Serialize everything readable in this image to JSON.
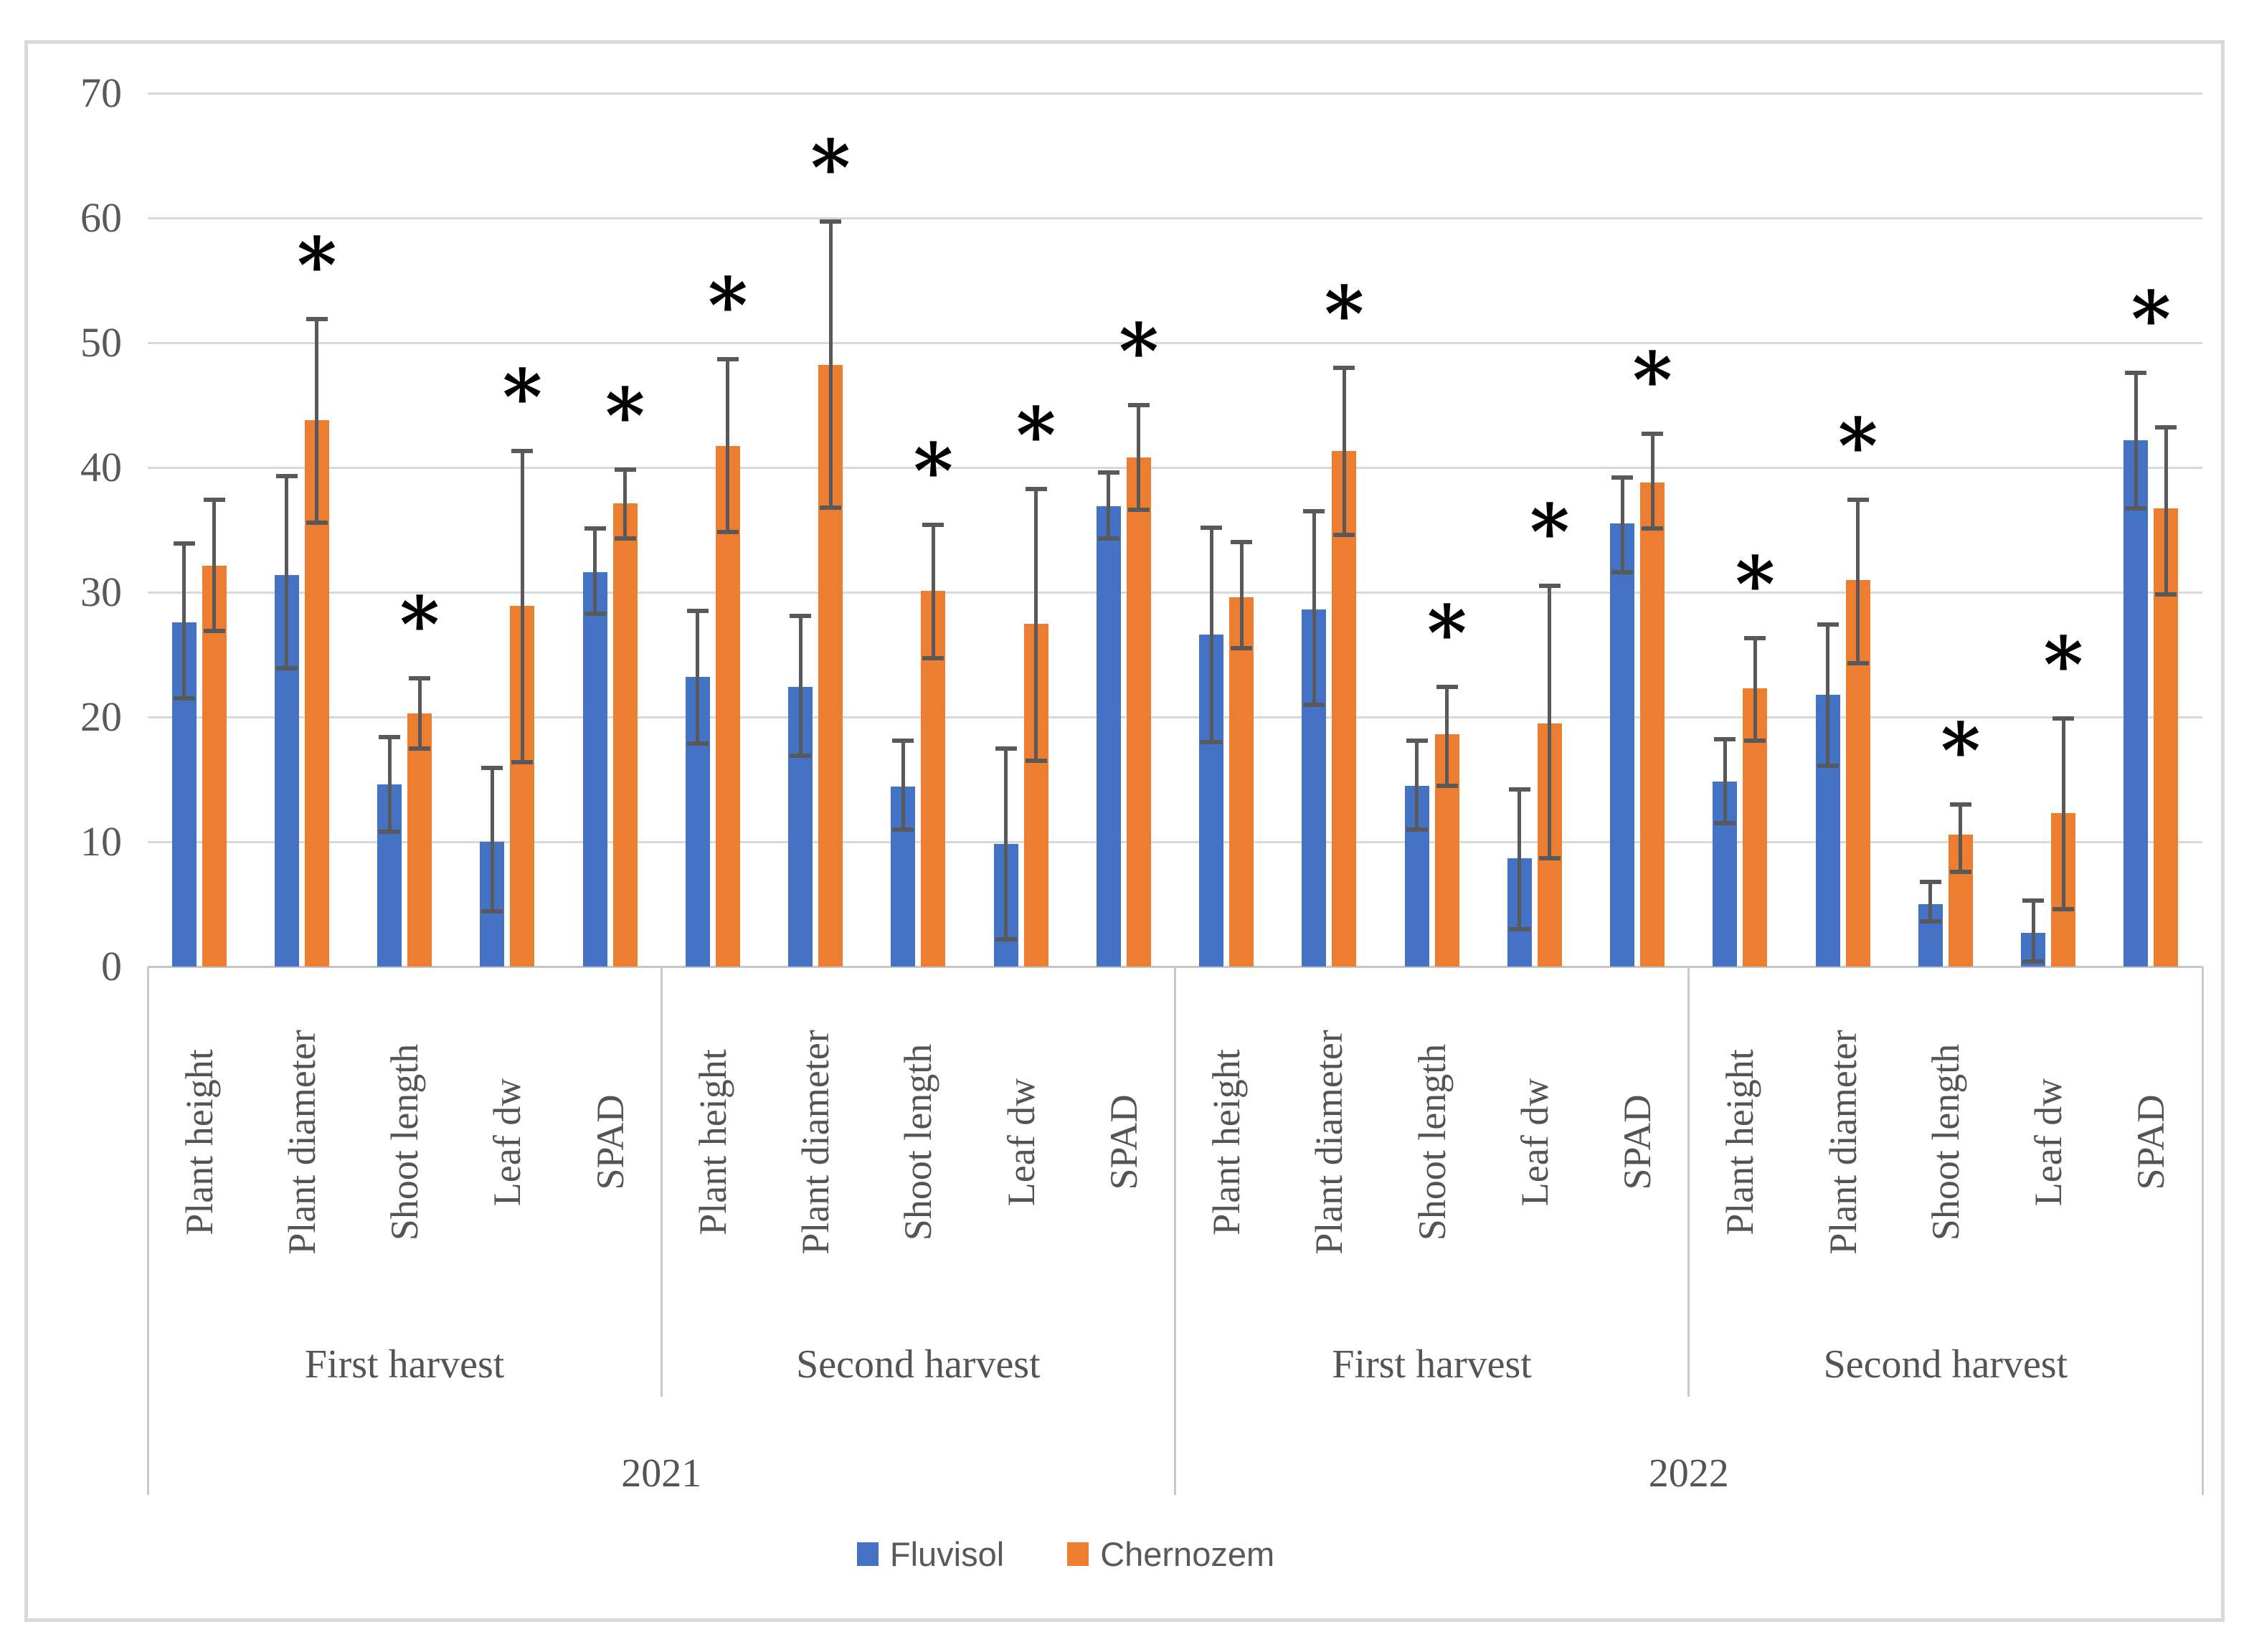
{
  "figure": {
    "background_color": "#ffffff",
    "border_color": "#d9d9d9"
  },
  "axis": {
    "y_tick_labels": [
      "0",
      "10",
      "20",
      "30",
      "40",
      "50",
      "60",
      "70"
    ],
    "y_min": 0,
    "y_max": 70,
    "y_step": 10,
    "grid_color": "#d9d9d9",
    "axis_line_color": "#c6c6c6",
    "tick_text_color": "#595959"
  },
  "legend": {
    "position": "bottom-center",
    "items": [
      {
        "label": "Fluvisol",
        "color": "#4472c4"
      },
      {
        "label": "Chernozem",
        "color": "#ed7d31"
      }
    ]
  },
  "chart_data": {
    "type": "bar",
    "title": "",
    "xlabel": "",
    "ylabel": "",
    "ylim": [
      0,
      70
    ],
    "y_gridlines": [
      0,
      10,
      20,
      30,
      40,
      50,
      60,
      70
    ],
    "grid": true,
    "legend_position": "bottom",
    "error_bar_color": "#595959",
    "significance_symbol": "*",
    "series_names": [
      "Fluvisol",
      "Chernozem"
    ],
    "series_colors": [
      "#4472c4",
      "#ed7d31"
    ],
    "measures": [
      "Plant height",
      "Plant diameter",
      "Shoot length",
      "Leaf dw",
      "SPAD"
    ],
    "sections": [
      {
        "year": "2021",
        "harvest": "First harvest",
        "groups": [
          {
            "measure": "Plant height",
            "fluvisol": {
              "value": 27.6,
              "err_lo": 21.5,
              "err_hi": 33.9
            },
            "chernozem": {
              "value": 32.1,
              "err_lo": 26.9,
              "err_hi": 37.4
            },
            "significant": false
          },
          {
            "measure": "Plant diameter",
            "fluvisol": {
              "value": 31.4,
              "err_lo": 23.9,
              "err_hi": 39.3
            },
            "chernozem": {
              "value": 43.8,
              "err_lo": 35.6,
              "err_hi": 51.9
            },
            "significant": true
          },
          {
            "measure": "Shoot length",
            "fluvisol": {
              "value": 14.6,
              "err_lo": 10.8,
              "err_hi": 18.4
            },
            "chernozem": {
              "value": 20.3,
              "err_lo": 17.5,
              "err_hi": 23.1
            },
            "significant": true
          },
          {
            "measure": "Leaf dw",
            "fluvisol": {
              "value": 10.0,
              "err_lo": 4.4,
              "err_hi": 15.9
            },
            "chernozem": {
              "value": 28.9,
              "err_lo": 16.4,
              "err_hi": 41.3
            },
            "significant": true
          },
          {
            "measure": "SPAD",
            "fluvisol": {
              "value": 31.6,
              "err_lo": 28.3,
              "err_hi": 35.1
            },
            "chernozem": {
              "value": 37.1,
              "err_lo": 34.3,
              "err_hi": 39.8
            },
            "significant": true
          }
        ]
      },
      {
        "year": "2021",
        "harvest": "Second harvest",
        "groups": [
          {
            "measure": "Plant height",
            "fluvisol": {
              "value": 23.2,
              "err_lo": 17.9,
              "err_hi": 28.5
            },
            "chernozem": {
              "value": 41.7,
              "err_lo": 34.8,
              "err_hi": 48.7
            },
            "significant": true
          },
          {
            "measure": "Plant diameter",
            "fluvisol": {
              "value": 22.4,
              "err_lo": 16.9,
              "err_hi": 28.1
            },
            "chernozem": {
              "value": 48.2,
              "err_lo": 36.8,
              "err_hi": 59.7
            },
            "significant": true
          },
          {
            "measure": "Shoot length",
            "fluvisol": {
              "value": 14.4,
              "err_lo": 11.0,
              "err_hi": 18.1
            },
            "chernozem": {
              "value": 30.1,
              "err_lo": 24.7,
              "err_hi": 35.4
            },
            "significant": true
          },
          {
            "measure": "Leaf dw",
            "fluvisol": {
              "value": 9.8,
              "err_lo": 2.2,
              "err_hi": 17.5
            },
            "chernozem": {
              "value": 27.5,
              "err_lo": 16.5,
              "err_hi": 38.3
            },
            "significant": true
          },
          {
            "measure": "SPAD",
            "fluvisol": {
              "value": 36.9,
              "err_lo": 34.3,
              "err_hi": 39.6
            },
            "chernozem": {
              "value": 40.8,
              "err_lo": 36.6,
              "err_hi": 45.0
            },
            "significant": true
          }
        ]
      },
      {
        "year": "2022",
        "harvest": "First harvest",
        "groups": [
          {
            "measure": "Plant height",
            "fluvisol": {
              "value": 26.6,
              "err_lo": 18.0,
              "err_hi": 35.2
            },
            "chernozem": {
              "value": 29.6,
              "err_lo": 25.5,
              "err_hi": 34.0
            },
            "significant": false
          },
          {
            "measure": "Plant diameter",
            "fluvisol": {
              "value": 28.6,
              "err_lo": 21.0,
              "err_hi": 36.5
            },
            "chernozem": {
              "value": 41.3,
              "err_lo": 34.6,
              "err_hi": 48.0
            },
            "significant": true
          },
          {
            "measure": "Shoot length",
            "fluvisol": {
              "value": 14.5,
              "err_lo": 11.0,
              "err_hi": 18.1
            },
            "chernozem": {
              "value": 18.6,
              "err_lo": 14.5,
              "err_hi": 22.4
            },
            "significant": true
          },
          {
            "measure": "Leaf dw",
            "fluvisol": {
              "value": 8.7,
              "err_lo": 3.0,
              "err_hi": 14.2
            },
            "chernozem": {
              "value": 19.5,
              "err_lo": 8.7,
              "err_hi": 30.5
            },
            "significant": true
          },
          {
            "measure": "SPAD",
            "fluvisol": {
              "value": 35.5,
              "err_lo": 31.6,
              "err_hi": 39.2
            },
            "chernozem": {
              "value": 38.8,
              "err_lo": 35.1,
              "err_hi": 42.7
            },
            "significant": true
          }
        ]
      },
      {
        "year": "2022",
        "harvest": "Second harvest",
        "groups": [
          {
            "measure": "Plant height",
            "fluvisol": {
              "value": 14.8,
              "err_lo": 11.5,
              "err_hi": 18.2
            },
            "chernozem": {
              "value": 22.3,
              "err_lo": 18.1,
              "err_hi": 26.3
            },
            "significant": true
          },
          {
            "measure": "Plant diameter",
            "fluvisol": {
              "value": 21.8,
              "err_lo": 16.1,
              "err_hi": 27.4
            },
            "chernozem": {
              "value": 31.0,
              "err_lo": 24.3,
              "err_hi": 37.4
            },
            "significant": true
          },
          {
            "measure": "Shoot length",
            "fluvisol": {
              "value": 5.0,
              "err_lo": 3.6,
              "err_hi": 6.8
            },
            "chernozem": {
              "value": 10.6,
              "err_lo": 7.6,
              "err_hi": 13.0
            },
            "significant": true
          },
          {
            "measure": "Leaf dw",
            "fluvisol": {
              "value": 2.7,
              "err_lo": 0.4,
              "err_hi": 5.3
            },
            "chernozem": {
              "value": 12.3,
              "err_lo": 4.6,
              "err_hi": 19.9
            },
            "significant": true
          },
          {
            "measure": "SPAD",
            "fluvisol": {
              "value": 42.2,
              "err_lo": 36.7,
              "err_hi": 47.6
            },
            "chernozem": {
              "value": 36.7,
              "err_lo": 29.8,
              "err_hi": 43.2
            },
            "significant": true,
            "star_position": "center"
          }
        ]
      }
    ]
  }
}
